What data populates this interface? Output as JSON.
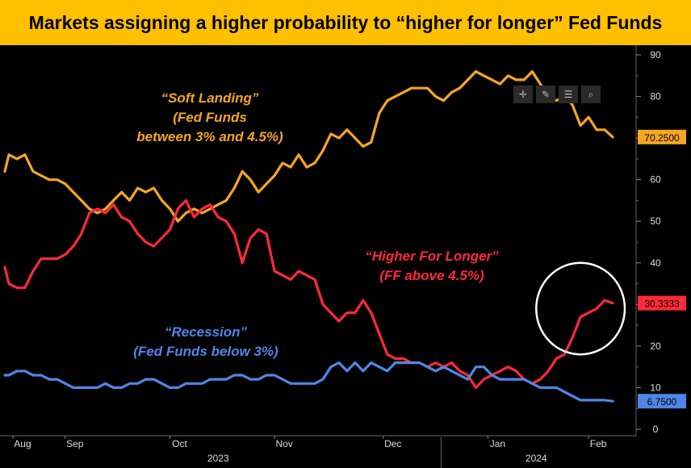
{
  "title": "Markets assigning a higher probability to “higher for longer” Fed Funds",
  "toolbar": {
    "icons": [
      "crosshair-icon",
      "pen-icon",
      "list-icon",
      "search-icon"
    ]
  },
  "annotations": {
    "soft_landing": {
      "line1": "“Soft Landing”",
      "line2": "(Fed Funds",
      "line3": "between 3% and 4.5%)",
      "color": "#f5a623"
    },
    "higher_for_longer": {
      "line1": "“Higher For Longer”",
      "line2": "(FF above 4.5%)",
      "color": "#ff2a3a"
    },
    "recession": {
      "line1": "“Recession”",
      "line2": "(Fed Funds below 3%)",
      "color": "#4f86e8"
    }
  },
  "chart_data": {
    "type": "line",
    "ylim": [
      0,
      92
    ],
    "yticks": [
      0,
      10,
      20,
      30,
      40,
      50,
      60,
      70,
      80,
      90
    ],
    "x_range": [
      0,
      152
    ],
    "month_labels": [
      {
        "label": "Aug",
        "x": 2
      },
      {
        "label": "Sep",
        "x": 15
      },
      {
        "label": "Oct",
        "x": 41
      },
      {
        "label": "Nov",
        "x": 67
      },
      {
        "label": "Dec",
        "x": 94
      },
      {
        "label": "Jan",
        "x": 120
      },
      {
        "label": "Feb",
        "x": 145
      }
    ],
    "year_labels": [
      {
        "label": "2023",
        "x": 53
      },
      {
        "label": "2024",
        "x": 132
      }
    ],
    "series": [
      {
        "name": "",
        "color": "#f5a623",
        "last_label": "70.2500",
        "points": [
          [
            0,
            62
          ],
          [
            1,
            66
          ],
          [
            3,
            65
          ],
          [
            5,
            66
          ],
          [
            7,
            62
          ],
          [
            9,
            61
          ],
          [
            11,
            60
          ],
          [
            13,
            60
          ],
          [
            15,
            59
          ],
          [
            17,
            57
          ],
          [
            19,
            55
          ],
          [
            21,
            53
          ],
          [
            23,
            52
          ],
          [
            25,
            53
          ],
          [
            27,
            55
          ],
          [
            29,
            57
          ],
          [
            31,
            55
          ],
          [
            33,
            58
          ],
          [
            35,
            57
          ],
          [
            37,
            58
          ],
          [
            39,
            55
          ],
          [
            41,
            53
          ],
          [
            43,
            50
          ],
          [
            45,
            52
          ],
          [
            47,
            53
          ],
          [
            49,
            52
          ],
          [
            51,
            53
          ],
          [
            53,
            54
          ],
          [
            55,
            55
          ],
          [
            57,
            58
          ],
          [
            59,
            62
          ],
          [
            61,
            60
          ],
          [
            63,
            57
          ],
          [
            65,
            59
          ],
          [
            67,
            61
          ],
          [
            69,
            64
          ],
          [
            71,
            63
          ],
          [
            73,
            66
          ],
          [
            75,
            63
          ],
          [
            77,
            64
          ],
          [
            79,
            67
          ],
          [
            81,
            71
          ],
          [
            83,
            70
          ],
          [
            85,
            72
          ],
          [
            87,
            70
          ],
          [
            89,
            68
          ],
          [
            91,
            69
          ],
          [
            93,
            76
          ],
          [
            95,
            79
          ],
          [
            97,
            80
          ],
          [
            99,
            81
          ],
          [
            101,
            82
          ],
          [
            103,
            82
          ],
          [
            105,
            82
          ],
          [
            107,
            80
          ],
          [
            109,
            79
          ],
          [
            111,
            81
          ],
          [
            113,
            82
          ],
          [
            115,
            84
          ],
          [
            117,
            86
          ],
          [
            119,
            85
          ],
          [
            121,
            84
          ],
          [
            123,
            83
          ],
          [
            125,
            85
          ],
          [
            127,
            84
          ],
          [
            129,
            84
          ],
          [
            131,
            86
          ],
          [
            133,
            83
          ],
          [
            135,
            80
          ],
          [
            137,
            79
          ],
          [
            139,
            80
          ],
          [
            141,
            78
          ],
          [
            143,
            73
          ],
          [
            145,
            75
          ],
          [
            147,
            72
          ],
          [
            149,
            72
          ],
          [
            151,
            70.25
          ]
        ]
      },
      {
        "name": "",
        "color": "#ff2a3a",
        "last_label": "30.3333",
        "points": [
          [
            0,
            39
          ],
          [
            1,
            35
          ],
          [
            3,
            34
          ],
          [
            5,
            34
          ],
          [
            7,
            38
          ],
          [
            9,
            41
          ],
          [
            11,
            41
          ],
          [
            13,
            41
          ],
          [
            15,
            42
          ],
          [
            17,
            44
          ],
          [
            19,
            47
          ],
          [
            21,
            52
          ],
          [
            23,
            53
          ],
          [
            25,
            52
          ],
          [
            27,
            54
          ],
          [
            29,
            51
          ],
          [
            31,
            50
          ],
          [
            33,
            47
          ],
          [
            35,
            45
          ],
          [
            37,
            44
          ],
          [
            39,
            46
          ],
          [
            41,
            48
          ],
          [
            43,
            53
          ],
          [
            45,
            55
          ],
          [
            47,
            51
          ],
          [
            49,
            53
          ],
          [
            51,
            54
          ],
          [
            53,
            51
          ],
          [
            55,
            50
          ],
          [
            57,
            47
          ],
          [
            59,
            40
          ],
          [
            61,
            46
          ],
          [
            63,
            48
          ],
          [
            65,
            47
          ],
          [
            67,
            38
          ],
          [
            69,
            37
          ],
          [
            71,
            36
          ],
          [
            73,
            38
          ],
          [
            75,
            37
          ],
          [
            77,
            36
          ],
          [
            79,
            30
          ],
          [
            81,
            28
          ],
          [
            83,
            26
          ],
          [
            85,
            28
          ],
          [
            87,
            28
          ],
          [
            89,
            31
          ],
          [
            91,
            28
          ],
          [
            93,
            23
          ],
          [
            95,
            18
          ],
          [
            97,
            17
          ],
          [
            99,
            17
          ],
          [
            101,
            16
          ],
          [
            103,
            16
          ],
          [
            105,
            15
          ],
          [
            107,
            16
          ],
          [
            109,
            15
          ],
          [
            111,
            16
          ],
          [
            113,
            14
          ],
          [
            115,
            13
          ],
          [
            117,
            10
          ],
          [
            119,
            12
          ],
          [
            121,
            13
          ],
          [
            123,
            14
          ],
          [
            125,
            15
          ],
          [
            127,
            14
          ],
          [
            129,
            12
          ],
          [
            131,
            11
          ],
          [
            133,
            12
          ],
          [
            135,
            14
          ],
          [
            137,
            17
          ],
          [
            139,
            18
          ],
          [
            141,
            22
          ],
          [
            143,
            27
          ],
          [
            145,
            28
          ],
          [
            147,
            29
          ],
          [
            149,
            31
          ],
          [
            151,
            30.33
          ]
        ]
      },
      {
        "name": "",
        "color": "#4f86e8",
        "last_label": "6.7500",
        "points": [
          [
            0,
            13
          ],
          [
            1,
            13
          ],
          [
            3,
            14
          ],
          [
            5,
            14
          ],
          [
            7,
            13
          ],
          [
            9,
            13
          ],
          [
            11,
            12
          ],
          [
            13,
            12
          ],
          [
            15,
            11
          ],
          [
            17,
            10
          ],
          [
            19,
            10
          ],
          [
            21,
            10
          ],
          [
            23,
            10
          ],
          [
            25,
            11
          ],
          [
            27,
            10
          ],
          [
            29,
            10
          ],
          [
            31,
            11
          ],
          [
            33,
            11
          ],
          [
            35,
            12
          ],
          [
            37,
            12
          ],
          [
            39,
            11
          ],
          [
            41,
            10
          ],
          [
            43,
            10
          ],
          [
            45,
            11
          ],
          [
            47,
            11
          ],
          [
            49,
            11
          ],
          [
            51,
            12
          ],
          [
            53,
            12
          ],
          [
            55,
            12
          ],
          [
            57,
            13
          ],
          [
            59,
            13
          ],
          [
            61,
            12
          ],
          [
            63,
            12
          ],
          [
            65,
            13
          ],
          [
            67,
            13
          ],
          [
            69,
            12
          ],
          [
            71,
            11
          ],
          [
            73,
            11
          ],
          [
            75,
            11
          ],
          [
            77,
            11
          ],
          [
            79,
            12
          ],
          [
            81,
            15
          ],
          [
            83,
            16
          ],
          [
            85,
            14
          ],
          [
            87,
            16
          ],
          [
            89,
            14
          ],
          [
            91,
            16
          ],
          [
            93,
            15
          ],
          [
            95,
            14
          ],
          [
            97,
            16
          ],
          [
            99,
            16
          ],
          [
            101,
            16
          ],
          [
            103,
            16
          ],
          [
            105,
            15
          ],
          [
            107,
            14
          ],
          [
            109,
            15
          ],
          [
            111,
            14
          ],
          [
            113,
            13
          ],
          [
            115,
            12
          ],
          [
            117,
            15
          ],
          [
            119,
            15
          ],
          [
            121,
            13
          ],
          [
            123,
            12
          ],
          [
            125,
            12
          ],
          [
            127,
            12
          ],
          [
            129,
            12
          ],
          [
            131,
            11
          ],
          [
            133,
            10
          ],
          [
            135,
            10
          ],
          [
            137,
            10
          ],
          [
            139,
            9
          ],
          [
            141,
            8
          ],
          [
            143,
            7
          ],
          [
            145,
            7
          ],
          [
            147,
            7
          ],
          [
            149,
            7
          ],
          [
            151,
            6.75
          ]
        ]
      }
    ],
    "highlight_circle": {
      "x_center": 143,
      "y_center": 29,
      "x_radius": 11,
      "y_radius": 11
    }
  }
}
